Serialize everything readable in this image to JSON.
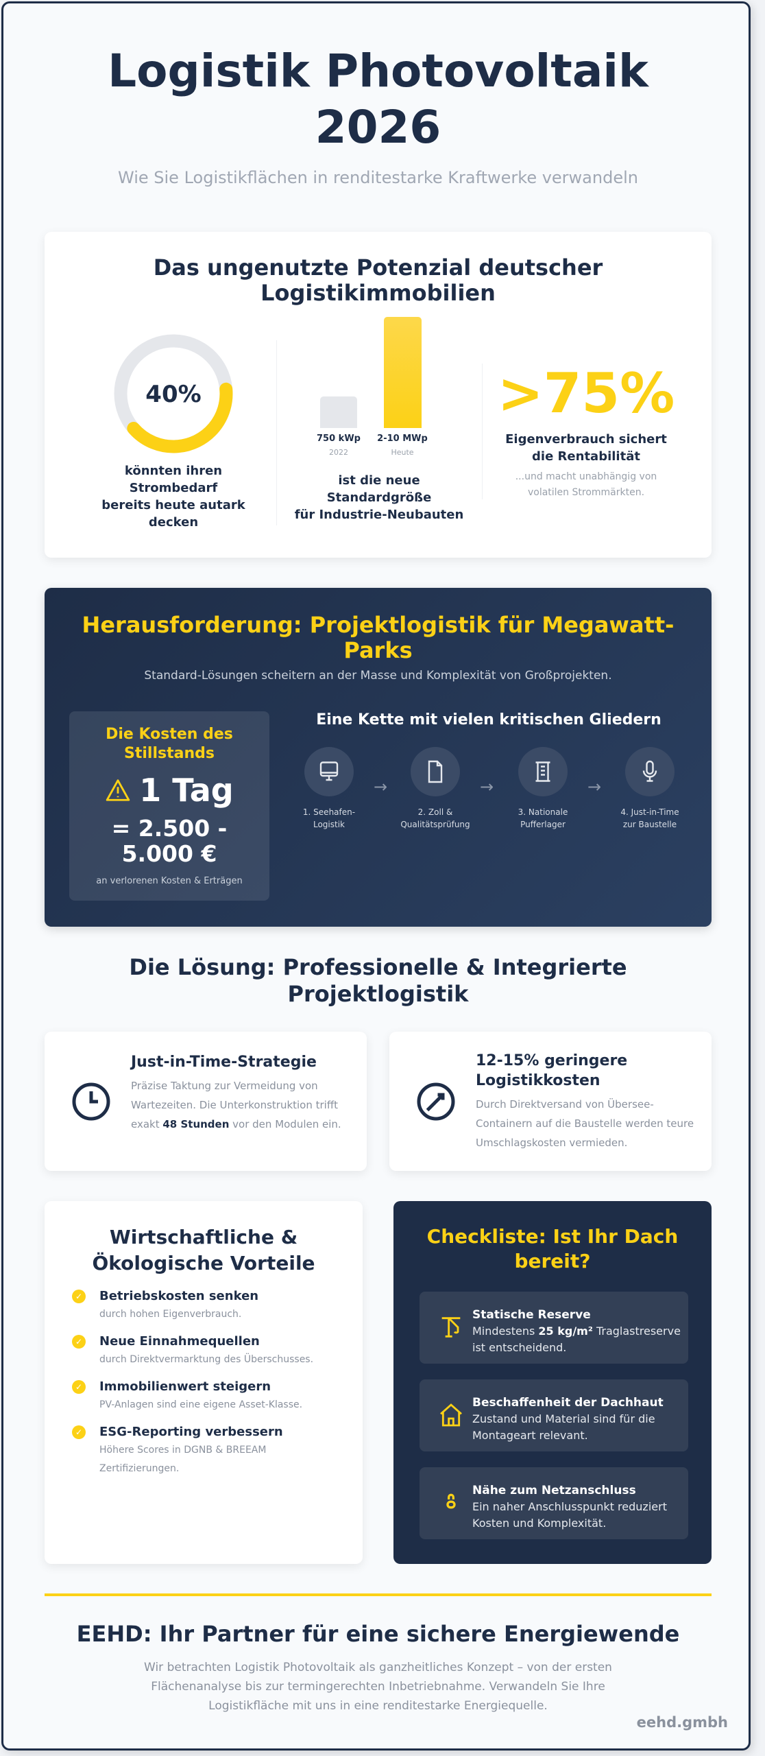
{
  "header": {
    "title_line1": "Logistik Photovoltaik",
    "title_line2": "2026",
    "subtitle": "Wie Sie Logistikflächen in renditestarke Kraftwerke verwandeln"
  },
  "potential": {
    "title_line1": "Das ungenutzte Potenzial deutscher",
    "title_line2": "Logistikimmobilien",
    "donut": {
      "value": "40%",
      "percent": 40,
      "caption": [
        "könnten ihren",
        "Strombedarf",
        "bereits heute autark",
        "decken"
      ]
    },
    "bars": {
      "items": [
        {
          "label": "750 kWp",
          "sub": "2022"
        },
        {
          "label": "2-10 MWp",
          "sub": "Heute"
        }
      ],
      "caption": [
        "ist die neue",
        "Standardgröße",
        "für Industrie-Neubauten"
      ]
    },
    "stat": {
      "value": ">75%",
      "caption": [
        "Eigenverbrauch sichert",
        "die Rentabilität"
      ],
      "note": [
        "...und macht unabhängig von",
        "volatilen Strommärkten."
      ]
    }
  },
  "challenge": {
    "title_line1": "Herausforderung: Projektlogistik für Megawatt-",
    "title_line2": "Parks",
    "subtitle": "Standard-Lösungen scheitern an der Masse und Komplexität von Großprojekten.",
    "cost": {
      "title_line1": "Die Kosten des",
      "title_line2": "Stillstands",
      "days": "1 Tag",
      "amount_line1": "= 2.500 -",
      "amount_line2": "5.000 €",
      "note": "an verlorenen Kosten & Erträgen"
    },
    "chain": {
      "title": "Eine Kette mit vielen kritischen Gliedern",
      "steps": [
        {
          "l1": "1. Seehafen-",
          "l2": "Logistik",
          "icon": "monitor-icon"
        },
        {
          "l1": "2. Zoll &",
          "l2": "Qualitätsprüfung",
          "icon": "document-icon"
        },
        {
          "l1": "3. Nationale",
          "l2": "Pufferlager",
          "icon": "warehouse-icon"
        },
        {
          "l1": "4. Just-in-Time",
          "l2": "zur Baustelle",
          "icon": "microphone-icon"
        }
      ],
      "arrow": "→"
    }
  },
  "solution": {
    "title_line1": "Die Lösung: Professionelle & Integrierte",
    "title_line2": "Projektlogistik",
    "cards": [
      {
        "title": "Just-in-Time-Strategie",
        "body_pre": "Präzise Taktung zur Vermeidung von Wartezeiten. Die Unterkonstruktion trifft exakt ",
        "body_bold": "48 Stunden",
        "body_post": " vor den Modulen ein.",
        "icon": "clock-icon"
      },
      {
        "title": "12-15% geringere Logistikkosten",
        "body": "Durch Direktversand von Übersee-Containern auf die Baustelle werden teure Umschlagskosten vermieden.",
        "icon": "gauge-icon"
      }
    ]
  },
  "benefits": {
    "title_line1": "Wirtschaftliche &",
    "title_line2": "Ökologische Vorteile",
    "items": [
      {
        "title": "Betriebskosten senken",
        "sub": "durch hohen Eigenverbrauch."
      },
      {
        "title": "Neue Einnahmequellen",
        "sub": "durch Direktvermarktung des Überschusses."
      },
      {
        "title": "Immobilienwert steigern",
        "sub": "PV-Anlagen sind eine eigene Asset-Klasse."
      },
      {
        "title": "ESG-Reporting verbessern",
        "sub": "Höhere Scores in DGNB & BREEAM Zertifizierungen."
      }
    ]
  },
  "checklist": {
    "title_line1": "Checkliste: Ist Ihr Dach",
    "title_line2": "bereit?",
    "items": [
      {
        "title": "Statische Reserve",
        "pre": "Mindestens ",
        "bold": "25 kg/m²",
        "post": " Traglastreserve ist entscheidend.",
        "icon": "crane-icon"
      },
      {
        "title": "Beschaffenheit der Dachhaut",
        "body": "Zustand und Material sind für die Montageart relevant.",
        "icon": "house-icon"
      },
      {
        "title": "Nähe zum Netzanschluss",
        "body": "Ein naher Anschlusspunkt reduziert Kosten und Komplexität.",
        "icon": "plug-icon"
      }
    ]
  },
  "footer": {
    "title": "EEHD: Ihr Partner für eine sichere Energiewende",
    "body_lines": [
      "Wir betrachten Logistik Photovoltaik als ganzheitliches Konzept – von der ersten",
      "Flächenanalyse bis zur termingerechten Inbetriebnahme. Verwandeln Sie Ihre",
      "Logistikfläche mit uns in eine renditestarke Energiequelle."
    ],
    "brand": "eehd.gmbh"
  },
  "colors": {
    "navy": "#1e2d47",
    "accent": "#fcd116",
    "gray": "#e5e7eb"
  }
}
